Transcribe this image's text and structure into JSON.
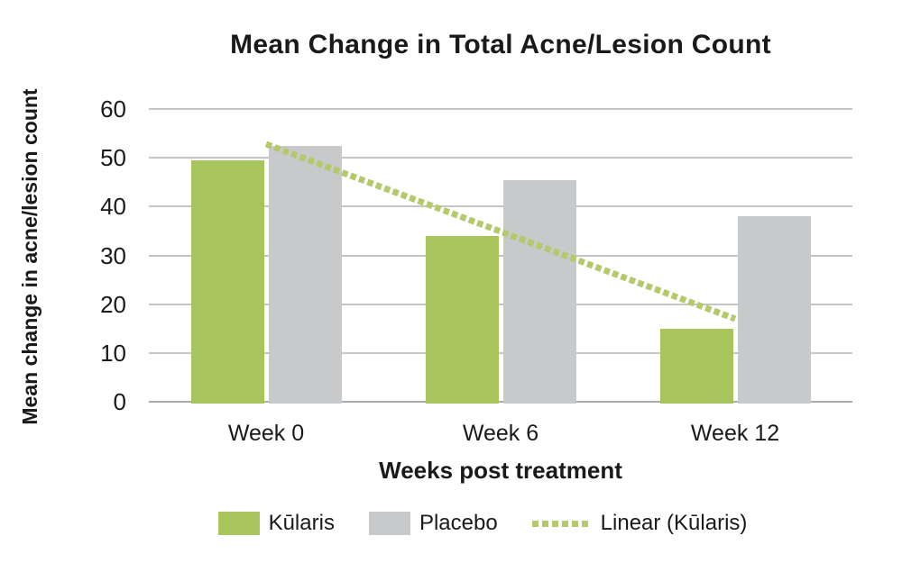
{
  "title": "Mean Change in Total Acne/Lesion Count",
  "y_axis": {
    "title": "Mean change in acne/lesion count",
    "tick_labels": [
      "0",
      "10",
      "20",
      "30",
      "40",
      "50",
      "60"
    ]
  },
  "x_axis": {
    "title": "Weeks post treatment",
    "tick_labels": [
      "Week 0",
      "Week 6",
      "Week 12"
    ]
  },
  "legend": {
    "items": [
      {
        "label": "Kūlaris",
        "marker": "swatch",
        "color": "#a8c45d"
      },
      {
        "label": "Placebo",
        "marker": "swatch",
        "color": "#c7c9ca"
      },
      {
        "label": "Linear (Kūlaris)",
        "marker": "dotted-line",
        "color": "#b3c96a"
      }
    ]
  },
  "colors": {
    "kularis_green": "#a8c45d",
    "placebo_gray": "#c7c9ca",
    "trendline_green": "#b3c96a",
    "gridline_gray": "#c3c5c6",
    "axis_line_gray": "#a9adb0",
    "text": "#1a1a1a"
  },
  "chart_data": {
    "type": "bar",
    "title": "Mean Change in Total Acne/Lesion Count",
    "xlabel": "Weeks post treatment",
    "ylabel": "Mean change in acne/lesion count",
    "categories": [
      "Week 0",
      "Week 6",
      "Week 12"
    ],
    "series": [
      {
        "name": "Kūlaris",
        "color": "#a8c45d",
        "values": [
          49.5,
          34,
          15
        ]
      },
      {
        "name": "Placebo",
        "color": "#c7c9ca",
        "values": [
          52.5,
          45.5,
          38
        ]
      }
    ],
    "trendline": {
      "name": "Linear (Kūlaris)",
      "series_ref": "Kūlaris",
      "style": "dotted",
      "color": "#b3c96a",
      "endpoint_values": [
        52.8,
        17
      ]
    },
    "ylim": [
      0,
      60
    ],
    "ytick_interval": 10,
    "grid": true,
    "legend_position": "bottom"
  }
}
